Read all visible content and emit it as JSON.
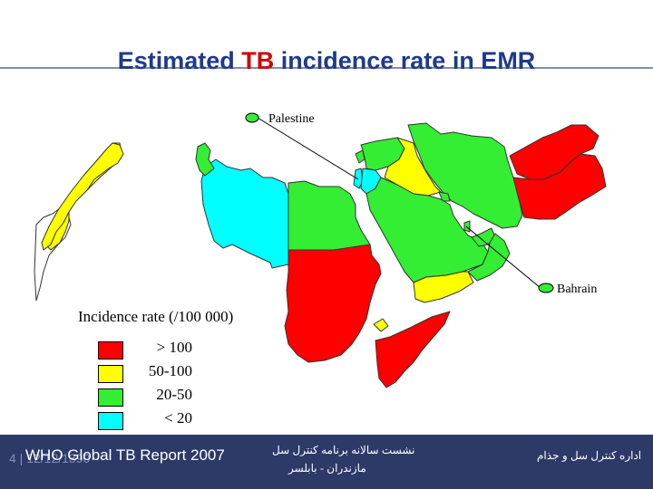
{
  "title": {
    "before": "Estimated ",
    "highlight": "TB",
    "after": " incidence rate in EMR"
  },
  "labels": {
    "palestine": "Palestine",
    "bahrain": "Bahrain"
  },
  "legend": {
    "title": "Incidence rate (/100 000)",
    "items": [
      {
        "label": "> 100",
        "color": "#ff0000"
      },
      {
        "label": "50-100",
        "color": "#ffff00"
      },
      {
        "label": "20-50",
        "color": "#33ee33"
      },
      {
        "label": "<  20",
        "color": "#00ffff"
      }
    ]
  },
  "footer": {
    "slide_info": "4 | 12/12/1390",
    "source": "WHO Global TB Report 2007",
    "center_line1": "نشست سالانه برنامه کنترل سل",
    "center_line2": "مازندران - بابلسر",
    "right": "اداره کنترل سل و جذام"
  },
  "colors": {
    "footer_bg": "#2d3a68",
    "title": "#1f3a8a",
    "title_highlight": "#d00000",
    "rule": "#7f8fb3"
  }
}
